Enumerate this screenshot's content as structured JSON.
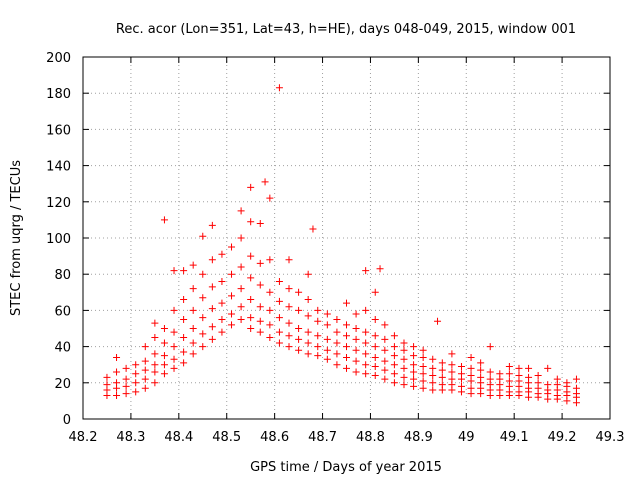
{
  "chart_data": {
    "type": "scatter",
    "title": "Rec. acor (Lon=351, Lat=43, h=HE), days 048-049, 2015, window 001",
    "xlabel": "GPS time / Days of year 2015",
    "ylabel": "STEC from uqrg / TECUs",
    "xlim": [
      48.2,
      49.3
    ],
    "ylim": [
      0,
      200
    ],
    "xticks": [
      48.2,
      48.3,
      48.4,
      48.5,
      48.6,
      48.7,
      48.8,
      48.9,
      49,
      49.1,
      49.2,
      49.3
    ],
    "xtick_labels": [
      "48.2",
      "48.3",
      "48.4",
      "48.5",
      "48.6",
      "48.7",
      "48.8",
      "48.9",
      "49",
      "49.1",
      "49.2",
      "49.3"
    ],
    "yticks": [
      0,
      20,
      40,
      60,
      80,
      100,
      120,
      140,
      160,
      180,
      200
    ],
    "ytick_labels": [
      "0",
      "20",
      "40",
      "60",
      "80",
      "100",
      "120",
      "140",
      "160",
      "180",
      "200"
    ],
    "grid": true,
    "marker": "+",
    "color": "#ff0000",
    "series": [
      {
        "name": "STEC",
        "points": [
          [
            48.25,
            13.0
          ],
          [
            48.25,
            16.0
          ],
          [
            48.25,
            19.0
          ],
          [
            48.25,
            23.0
          ],
          [
            48.27,
            13.0
          ],
          [
            48.27,
            17.0
          ],
          [
            48.27,
            20.0
          ],
          [
            48.27,
            26.0
          ],
          [
            48.27,
            34.0
          ],
          [
            48.29,
            14.0
          ],
          [
            48.29,
            18.0
          ],
          [
            48.29,
            22.0
          ],
          [
            48.29,
            28.0
          ],
          [
            48.31,
            15.0
          ],
          [
            48.31,
            20.0
          ],
          [
            48.31,
            25.0
          ],
          [
            48.31,
            30.0
          ],
          [
            48.33,
            17.0
          ],
          [
            48.33,
            22.0
          ],
          [
            48.33,
            27.0
          ],
          [
            48.33,
            32.0
          ],
          [
            48.33,
            40.0
          ],
          [
            48.35,
            20.0
          ],
          [
            48.35,
            26.0
          ],
          [
            48.35,
            30.0
          ],
          [
            48.35,
            36.0
          ],
          [
            48.35,
            45.0
          ],
          [
            48.35,
            53.0
          ],
          [
            48.37,
            25.0
          ],
          [
            48.37,
            30.0
          ],
          [
            48.37,
            35.0
          ],
          [
            48.37,
            42.0
          ],
          [
            48.37,
            50.0
          ],
          [
            48.37,
            110.0
          ],
          [
            48.39,
            28.0
          ],
          [
            48.39,
            33.0
          ],
          [
            48.39,
            40.0
          ],
          [
            48.39,
            48.0
          ],
          [
            48.39,
            60.0
          ],
          [
            48.39,
            82.0
          ],
          [
            48.41,
            31.0
          ],
          [
            48.41,
            37.0
          ],
          [
            48.41,
            45.0
          ],
          [
            48.41,
            55.0
          ],
          [
            48.41,
            66.0
          ],
          [
            48.41,
            82.0
          ],
          [
            48.43,
            36.0
          ],
          [
            48.43,
            42.0
          ],
          [
            48.43,
            50.0
          ],
          [
            48.43,
            60.0
          ],
          [
            48.43,
            72.0
          ],
          [
            48.43,
            85.0
          ],
          [
            48.45,
            40.0
          ],
          [
            48.45,
            47.0
          ],
          [
            48.45,
            56.0
          ],
          [
            48.45,
            67.0
          ],
          [
            48.45,
            80.0
          ],
          [
            48.45,
            101.0
          ],
          [
            48.47,
            44.0
          ],
          [
            48.47,
            51.0
          ],
          [
            48.47,
            61.0
          ],
          [
            48.47,
            73.0
          ],
          [
            48.47,
            88.0
          ],
          [
            48.47,
            107.0
          ],
          [
            48.49,
            48.0
          ],
          [
            48.49,
            55.0
          ],
          [
            48.49,
            64.0
          ],
          [
            48.49,
            76.0
          ],
          [
            48.49,
            91.0
          ],
          [
            48.51,
            52.0
          ],
          [
            48.51,
            58.0
          ],
          [
            48.51,
            68.0
          ],
          [
            48.51,
            80.0
          ],
          [
            48.51,
            95.0
          ],
          [
            48.53,
            55.0
          ],
          [
            48.53,
            62.0
          ],
          [
            48.53,
            72.0
          ],
          [
            48.53,
            84.0
          ],
          [
            48.53,
            100.0
          ],
          [
            48.53,
            115.0
          ],
          [
            48.55,
            50.0
          ],
          [
            48.55,
            56.0
          ],
          [
            48.55,
            66.0
          ],
          [
            48.55,
            78.0
          ],
          [
            48.55,
            90.0
          ],
          [
            48.55,
            109.0
          ],
          [
            48.55,
            128.0
          ],
          [
            48.57,
            48.0
          ],
          [
            48.57,
            54.0
          ],
          [
            48.57,
            62.0
          ],
          [
            48.57,
            74.0
          ],
          [
            48.57,
            86.0
          ],
          [
            48.57,
            108.0
          ],
          [
            48.58,
            131.0
          ],
          [
            48.59,
            45.0
          ],
          [
            48.59,
            52.0
          ],
          [
            48.59,
            60.0
          ],
          [
            48.59,
            70.0
          ],
          [
            48.59,
            88.0
          ],
          [
            48.59,
            122.0
          ],
          [
            48.61,
            183.0
          ],
          [
            48.61,
            42.0
          ],
          [
            48.61,
            48.0
          ],
          [
            48.61,
            56.0
          ],
          [
            48.61,
            65.0
          ],
          [
            48.61,
            76.0
          ],
          [
            48.63,
            40.0
          ],
          [
            48.63,
            46.0
          ],
          [
            48.63,
            53.0
          ],
          [
            48.63,
            62.0
          ],
          [
            48.63,
            72.0
          ],
          [
            48.63,
            88.0
          ],
          [
            48.65,
            38.0
          ],
          [
            48.65,
            44.0
          ],
          [
            48.65,
            50.0
          ],
          [
            48.65,
            60.0
          ],
          [
            48.65,
            70.0
          ],
          [
            48.67,
            36.0
          ],
          [
            48.67,
            42.0
          ],
          [
            48.67,
            48.0
          ],
          [
            48.67,
            57.0
          ],
          [
            48.67,
            66.0
          ],
          [
            48.67,
            80.0
          ],
          [
            48.68,
            105.0
          ],
          [
            48.69,
            35.0
          ],
          [
            48.69,
            40.0
          ],
          [
            48.69,
            46.0
          ],
          [
            48.69,
            54.0
          ],
          [
            48.69,
            60.0
          ],
          [
            48.71,
            33.0
          ],
          [
            48.71,
            38.0
          ],
          [
            48.71,
            44.0
          ],
          [
            48.71,
            52.0
          ],
          [
            48.71,
            58.0
          ],
          [
            48.73,
            30.0
          ],
          [
            48.73,
            36.0
          ],
          [
            48.73,
            42.0
          ],
          [
            48.73,
            48.0
          ],
          [
            48.73,
            55.0
          ],
          [
            48.75,
            28.0
          ],
          [
            48.75,
            34.0
          ],
          [
            48.75,
            40.0
          ],
          [
            48.75,
            46.0
          ],
          [
            48.75,
            52.0
          ],
          [
            48.75,
            64.0
          ],
          [
            48.77,
            26.0
          ],
          [
            48.77,
            32.0
          ],
          [
            48.77,
            38.0
          ],
          [
            48.77,
            44.0
          ],
          [
            48.77,
            50.0
          ],
          [
            48.77,
            58.0
          ],
          [
            48.79,
            25.0
          ],
          [
            48.79,
            30.0
          ],
          [
            48.79,
            36.0
          ],
          [
            48.79,
            42.0
          ],
          [
            48.79,
            48.0
          ],
          [
            48.79,
            60.0
          ],
          [
            48.79,
            82.0
          ],
          [
            48.81,
            24.0
          ],
          [
            48.81,
            29.0
          ],
          [
            48.81,
            34.0
          ],
          [
            48.81,
            40.0
          ],
          [
            48.81,
            46.0
          ],
          [
            48.81,
            55.0
          ],
          [
            48.81,
            70.0
          ],
          [
            48.82,
            83.0
          ],
          [
            48.83,
            22.0
          ],
          [
            48.83,
            27.0
          ],
          [
            48.83,
            32.0
          ],
          [
            48.83,
            38.0
          ],
          [
            48.83,
            44.0
          ],
          [
            48.83,
            52.0
          ],
          [
            48.85,
            20.0
          ],
          [
            48.85,
            25.0
          ],
          [
            48.85,
            30.0
          ],
          [
            48.85,
            35.0
          ],
          [
            48.85,
            40.0
          ],
          [
            48.85,
            46.0
          ],
          [
            48.87,
            19.0
          ],
          [
            48.87,
            23.0
          ],
          [
            48.87,
            28.0
          ],
          [
            48.87,
            33.0
          ],
          [
            48.87,
            38.0
          ],
          [
            48.87,
            42.0
          ],
          [
            48.89,
            18.0
          ],
          [
            48.89,
            22.0
          ],
          [
            48.89,
            26.0
          ],
          [
            48.89,
            30.0
          ],
          [
            48.89,
            35.0
          ],
          [
            48.89,
            40.0
          ],
          [
            48.91,
            17.0
          ],
          [
            48.91,
            21.0
          ],
          [
            48.91,
            25.0
          ],
          [
            48.91,
            29.0
          ],
          [
            48.91,
            34.0
          ],
          [
            48.91,
            38.0
          ],
          [
            48.93,
            16.0
          ],
          [
            48.93,
            20.0
          ],
          [
            48.93,
            24.0
          ],
          [
            48.93,
            28.0
          ],
          [
            48.93,
            33.0
          ],
          [
            48.94,
            54.0
          ],
          [
            48.95,
            16.0
          ],
          [
            48.95,
            19.0
          ],
          [
            48.95,
            23.0
          ],
          [
            48.95,
            27.0
          ],
          [
            48.95,
            31.0
          ],
          [
            48.97,
            16.0
          ],
          [
            48.97,
            19.0
          ],
          [
            48.97,
            22.0
          ],
          [
            48.97,
            26.0
          ],
          [
            48.97,
            30.0
          ],
          [
            48.97,
            36.0
          ],
          [
            48.99,
            15.0
          ],
          [
            48.99,
            18.0
          ],
          [
            48.99,
            22.0
          ],
          [
            48.99,
            25.0
          ],
          [
            48.99,
            29.0
          ],
          [
            49.01,
            14.0
          ],
          [
            49.01,
            17.0
          ],
          [
            49.01,
            21.0
          ],
          [
            49.01,
            24.0
          ],
          [
            49.01,
            28.0
          ],
          [
            49.01,
            34.0
          ],
          [
            49.03,
            14.0
          ],
          [
            49.03,
            17.0
          ],
          [
            49.03,
            20.0
          ],
          [
            49.03,
            23.0
          ],
          [
            49.03,
            27.0
          ],
          [
            49.03,
            31.0
          ],
          [
            49.05,
            13.0
          ],
          [
            49.05,
            16.0
          ],
          [
            49.05,
            19.0
          ],
          [
            49.05,
            22.0
          ],
          [
            49.05,
            26.0
          ],
          [
            49.05,
            40.0
          ],
          [
            49.07,
            13.0
          ],
          [
            49.07,
            16.0
          ],
          [
            49.07,
            19.0
          ],
          [
            49.07,
            22.0
          ],
          [
            49.07,
            25.0
          ],
          [
            49.09,
            13.0
          ],
          [
            49.09,
            15.0
          ],
          [
            49.09,
            18.0
          ],
          [
            49.09,
            21.0
          ],
          [
            49.09,
            25.0
          ],
          [
            49.09,
            29.0
          ],
          [
            49.11,
            13.0
          ],
          [
            49.11,
            15.0
          ],
          [
            49.11,
            18.0
          ],
          [
            49.11,
            21.0
          ],
          [
            49.11,
            24.0
          ],
          [
            49.11,
            28.0
          ],
          [
            49.13,
            12.0
          ],
          [
            49.13,
            15.0
          ],
          [
            49.13,
            17.0
          ],
          [
            49.13,
            20.0
          ],
          [
            49.13,
            23.0
          ],
          [
            49.13,
            28.0
          ],
          [
            49.15,
            12.0
          ],
          [
            49.15,
            14.0
          ],
          [
            49.15,
            17.0
          ],
          [
            49.15,
            20.0
          ],
          [
            49.15,
            24.0
          ],
          [
            49.17,
            11.0
          ],
          [
            49.17,
            14.0
          ],
          [
            49.17,
            16.0
          ],
          [
            49.17,
            19.0
          ],
          [
            49.17,
            28.0
          ],
          [
            49.19,
            11.0
          ],
          [
            49.19,
            13.0
          ],
          [
            49.19,
            16.0
          ],
          [
            49.19,
            19.0
          ],
          [
            49.19,
            22.0
          ],
          [
            49.21,
            10.0
          ],
          [
            49.21,
            13.0
          ],
          [
            49.21,
            15.0
          ],
          [
            49.21,
            18.0
          ],
          [
            49.21,
            20.0
          ],
          [
            49.23,
            9.0
          ],
          [
            49.23,
            12.0
          ],
          [
            49.23,
            14.0
          ],
          [
            49.23,
            17.0
          ],
          [
            49.23,
            22.0
          ]
        ]
      }
    ]
  }
}
